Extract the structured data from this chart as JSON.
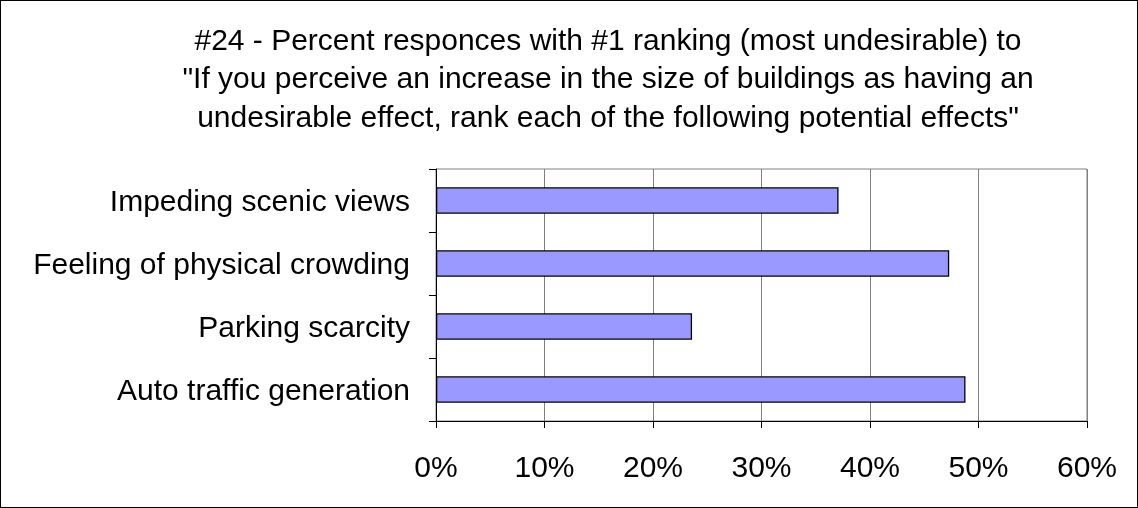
{
  "chart_data": {
    "type": "bar",
    "orientation": "horizontal",
    "title": "#24 - Percent responces with #1 ranking (most undesirable) to\n\"If you perceive an increase in the size of buildings as having an\nundesirable effect, rank each of the following potential effects\"",
    "categories": [
      "Impeding scenic views",
      "Feeling of physical crowding",
      "Parking scarcity",
      "Auto traffic generation"
    ],
    "values": [
      37.1,
      47.3,
      23.6,
      48.8
    ],
    "color": "#9999ff",
    "xlim": [
      0,
      60
    ],
    "xticks": [
      {
        "value": 0,
        "label": "0%"
      },
      {
        "value": 10,
        "label": "10%"
      },
      {
        "value": 20,
        "label": "20%"
      },
      {
        "value": 30,
        "label": "30%"
      },
      {
        "value": 40,
        "label": "40%"
      },
      {
        "value": 50,
        "label": "50%"
      },
      {
        "value": 60,
        "label": "60%"
      }
    ],
    "grid": "x"
  }
}
